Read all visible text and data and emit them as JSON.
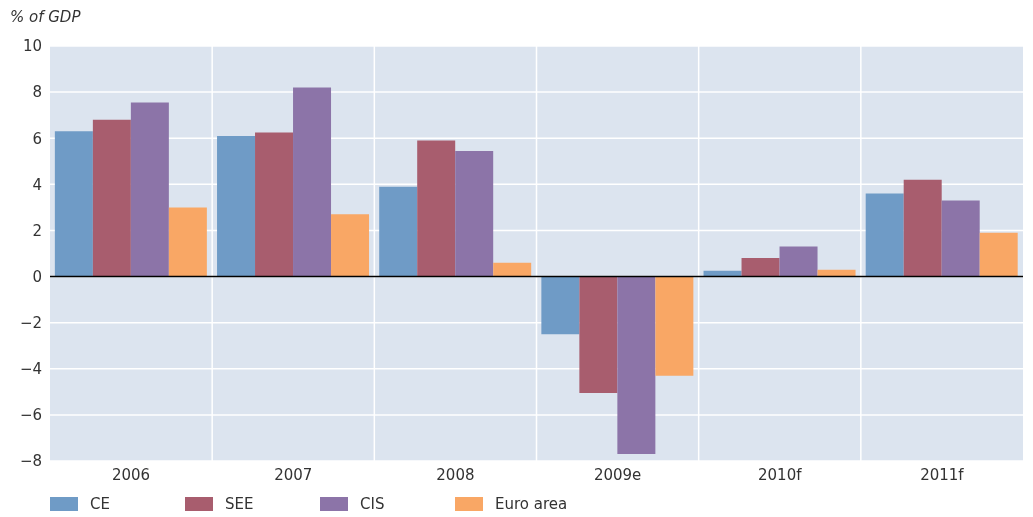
{
  "chart_data": {
    "type": "bar",
    "ylabel": "% of GDP",
    "categories": [
      "2006",
      "2007",
      "2008",
      "2009e",
      "2010f",
      "2011f"
    ],
    "series": [
      {
        "name": "CE",
        "color": "#6f9bc6",
        "values": [
          6.3,
          6.1,
          3.9,
          -2.5,
          0.25,
          3.6
        ]
      },
      {
        "name": "SEE",
        "color": "#a85d6e",
        "values": [
          6.8,
          6.25,
          5.9,
          -5.05,
          0.8,
          4.2
        ]
      },
      {
        "name": "CIS",
        "color": "#8c74a8",
        "values": [
          7.55,
          8.2,
          5.45,
          -7.7,
          1.3,
          3.3
        ]
      },
      {
        "name": "Euro area",
        "color": "#f9a765",
        "values": [
          3.0,
          2.7,
          0.6,
          -4.3,
          0.3,
          1.9
        ]
      }
    ],
    "ylim": [
      -8,
      10
    ],
    "yticks": [
      {
        "value": -8,
        "label": "−8"
      },
      {
        "value": -6,
        "label": "−6"
      },
      {
        "value": -4,
        "label": "−4"
      },
      {
        "value": -2,
        "label": "−2"
      },
      0,
      2,
      4,
      6,
      8,
      10
    ],
    "ref_lines": [
      {
        "axis": "y",
        "value": 0,
        "color": "#000000"
      }
    ],
    "grid": true,
    "legend": "bottom left"
  }
}
